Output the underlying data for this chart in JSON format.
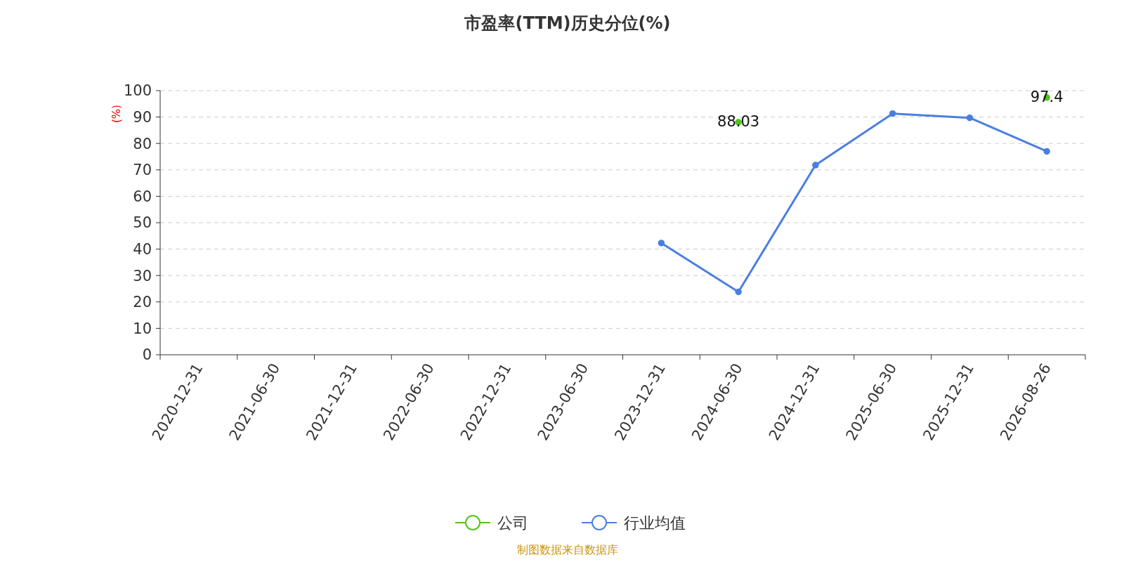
{
  "chart_data": {
    "type": "line",
    "title": "市盈率(TTM)历史分位(%)",
    "ylabel": "(%)",
    "categories": [
      "2020-12-31",
      "2021-06-30",
      "2021-12-31",
      "2022-06-30",
      "2022-12-31",
      "2023-06-30",
      "2023-12-31",
      "2024-06-30",
      "2024-12-31",
      "2025-06-30",
      "2025-12-31",
      "2026-08-26"
    ],
    "series": [
      {
        "name": "公司",
        "type": "scatter",
        "color": "#52c41a",
        "values": [
          null,
          null,
          null,
          null,
          null,
          null,
          null,
          88.03,
          null,
          null,
          null,
          97.4
        ],
        "value_labels": [
          null,
          null,
          null,
          null,
          null,
          null,
          null,
          "88.03",
          null,
          null,
          null,
          "97.4"
        ]
      },
      {
        "name": "行业均值",
        "color": "#4a7fe0",
        "values": [
          null,
          null,
          null,
          null,
          null,
          null,
          42.3,
          23.8,
          71.8,
          91.3,
          89.7,
          77.0
        ]
      }
    ],
    "ylim": [
      0,
      100
    ],
    "yticks": [
      0,
      10,
      20,
      30,
      40,
      50,
      60,
      70,
      80,
      90,
      100
    ],
    "grid": "y",
    "legend": "bottom",
    "marker": "circle",
    "line_style": "solid",
    "annotations": [
      "制图数据来自数据库"
    ]
  }
}
